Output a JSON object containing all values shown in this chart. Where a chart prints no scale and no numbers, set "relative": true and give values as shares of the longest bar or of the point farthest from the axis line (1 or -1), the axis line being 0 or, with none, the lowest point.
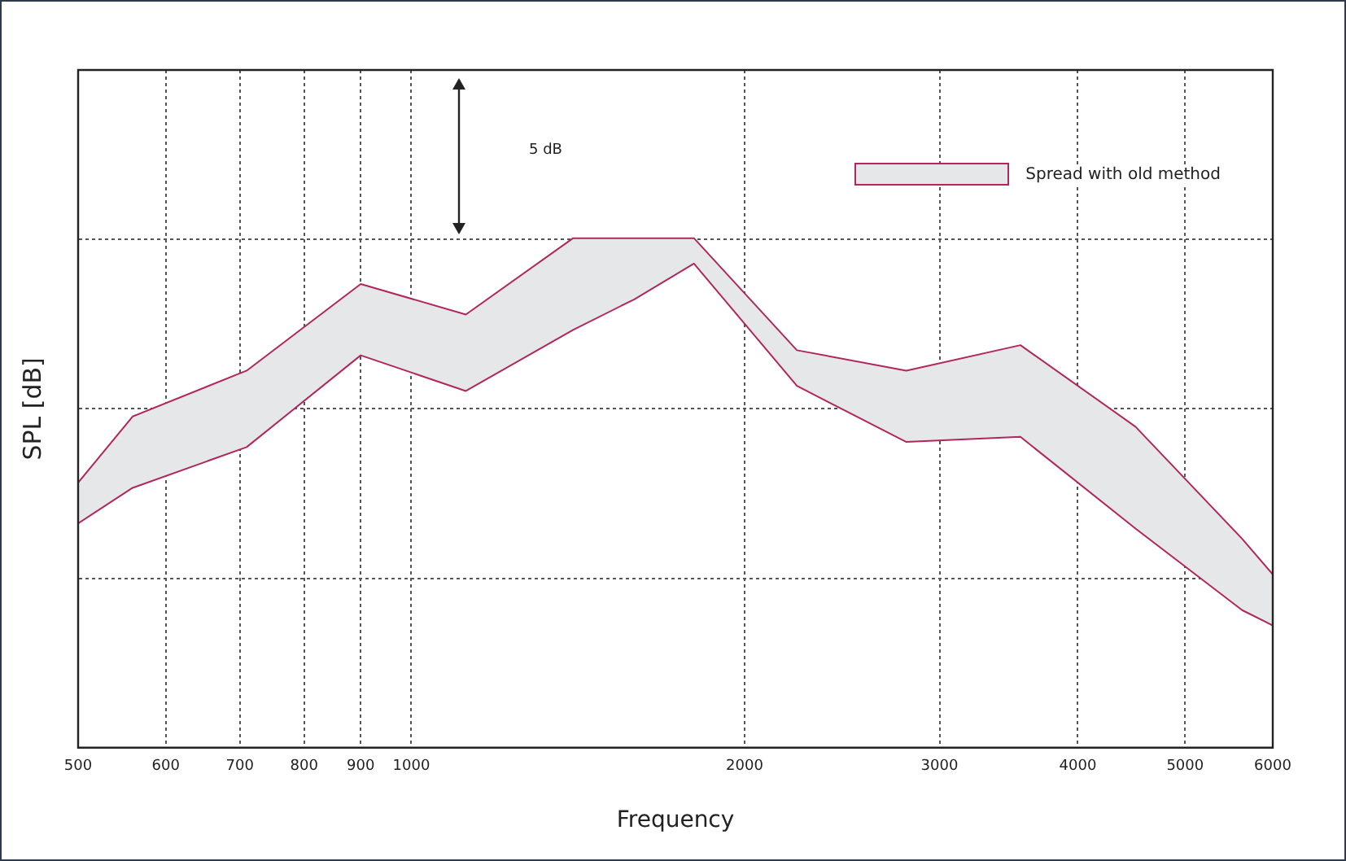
{
  "chart_data": {
    "type": "line",
    "xlabel": "Frequency",
    "ylabel": "SPL [dB]",
    "relative": true,
    "log": "x",
    "grid": true,
    "legend": "top right",
    "marker": "none",
    "line_style": "solid",
    "xlim": [
      500,
      6000
    ],
    "xticks": [
      500,
      600,
      700,
      800,
      900,
      1000,
      2000,
      3000,
      4000,
      5000,
      6000
    ],
    "annotations": [
      "5 dB"
    ],
    "series": [
      {
        "name": "Spread with old method",
        "type": "line",
        "color": "#b0275f",
        "x": [
          500,
          560,
          710,
          900,
          1120,
          1400,
          1590,
          1800,
          2230,
          2800,
          3550,
          4510,
          5630,
          6000
        ],
        "values": [
          0.52,
          0.65,
          0.74,
          0.91,
          0.85,
          1,
          1,
          1,
          0.78,
          0.74,
          0.79,
          0.63,
          0.41,
          0.34
        ],
        "lower": [
          0.44,
          0.51,
          0.59,
          0.77,
          0.7,
          0.82,
          0.88,
          0.95,
          0.71,
          0.6,
          0.61,
          0.43,
          0.27,
          0.24
        ],
        "upper": [
          0.52,
          0.65,
          0.74,
          0.91,
          0.85,
          1,
          1,
          1,
          0.78,
          0.74,
          0.79,
          0.63,
          0.41,
          0.34
        ]
      },
      {
        "type": "line",
        "color": "#b0275f",
        "x": [
          500,
          560,
          710,
          900,
          1120,
          1400,
          1590,
          1800,
          2230,
          2800,
          3550,
          4510,
          5630,
          6000
        ],
        "values": [
          0.44,
          0.51,
          0.59,
          0.77,
          0.7,
          0.82,
          0.88,
          0.95,
          0.71,
          0.6,
          0.61,
          0.43,
          0.27,
          0.24
        ]
      }
    ]
  }
}
